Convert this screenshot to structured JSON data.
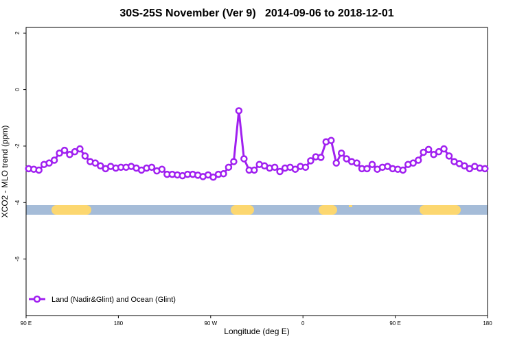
{
  "chart_data": {
    "type": "line",
    "title": "30S-25S November (Ver 9)   2014-09-06 to 2018-12-01",
    "x_label": "Longitude (deg E)",
    "y_label": "XCO2 - MLO trend (ppm)",
    "xlim": [
      90,
      540
    ],
    "ylim": [
      -8,
      2.2
    ],
    "xticks": [
      {
        "value": 90,
        "label": "90 E"
      },
      180,
      {
        "value": 270,
        "label": "90 W"
      },
      {
        "value": 360,
        "label": "0"
      },
      {
        "value": 450,
        "label": "90 E"
      },
      {
        "value": 540,
        "label": "180"
      }
    ],
    "yticks": [
      2,
      0,
      -2,
      -4,
      -6
    ],
    "legend": "bottom-left",
    "x": [
      92.5,
      97.5,
      102.5,
      107.5,
      112.5,
      117.5,
      122.5,
      127.5,
      132.5,
      137.5,
      142.5,
      147.5,
      152.5,
      157.5,
      162.5,
      167.5,
      172.5,
      177.5,
      182.5,
      187.5,
      192.5,
      197.5,
      202.5,
      207.5,
      212.5,
      217.5,
      222.5,
      227.5,
      232.5,
      237.5,
      242.5,
      247.5,
      252.5,
      257.5,
      262.5,
      267.5,
      272.5,
      277.5,
      282.5,
      287.5,
      292.5,
      297.5,
      302.5,
      307.5,
      312.5,
      317.5,
      322.5,
      327.5,
      332.5,
      337.5,
      342.5,
      347.5,
      352.5,
      357.5,
      362.5,
      367.5,
      372.5,
      377.5,
      382.5,
      387.5,
      392.5,
      397.5,
      402.5,
      407.5,
      412.5,
      417.5,
      422.5,
      427.5,
      432.5,
      437.5,
      442.5,
      447.5,
      452.5,
      457.5,
      462.5,
      467.5,
      472.5,
      477.5,
      482.5,
      487.5,
      492.5,
      497.5,
      502.5,
      507.5,
      512.5,
      517.5,
      522.5,
      527.5,
      532.5,
      537.5
    ],
    "series": [
      {
        "name": "Land (Nadir&Glint) and Ocean (Glint)",
        "color": "#a020f0",
        "values": [
          -2.8,
          -2.82,
          -2.85,
          -2.65,
          -2.6,
          -2.5,
          -2.25,
          -2.15,
          -2.3,
          -2.2,
          -2.1,
          -2.35,
          -2.55,
          -2.6,
          -2.7,
          -2.8,
          -2.72,
          -2.78,
          -2.75,
          -2.75,
          -2.72,
          -2.78,
          -2.85,
          -2.78,
          -2.75,
          -2.88,
          -2.82,
          -3.0,
          -3.0,
          -3.02,
          -3.05,
          -3.0,
          -3.0,
          -3.03,
          -3.08,
          -3.02,
          -3.1,
          -3.0,
          -2.98,
          -2.75,
          -2.55,
          -0.75,
          -2.45,
          -2.85,
          -2.85,
          -2.65,
          -2.7,
          -2.78,
          -2.75,
          -2.9,
          -2.78,
          -2.75,
          -2.82,
          -2.72,
          -2.75,
          -2.52,
          -2.38,
          -2.4,
          -1.85,
          -1.8,
          -2.6,
          -2.25,
          -2.45,
          -2.55,
          -2.6,
          -2.8,
          -2.8,
          -2.65,
          -2.82,
          -2.75,
          -2.72,
          -2.8,
          -2.82,
          -2.85,
          -2.65,
          -2.6,
          -2.5,
          -2.22,
          -2.12,
          -2.3,
          -2.2,
          -2.1,
          -2.35,
          -2.55,
          -2.62,
          -2.7,
          -2.8,
          -2.72,
          -2.78,
          -2.8
        ]
      }
    ]
  }
}
